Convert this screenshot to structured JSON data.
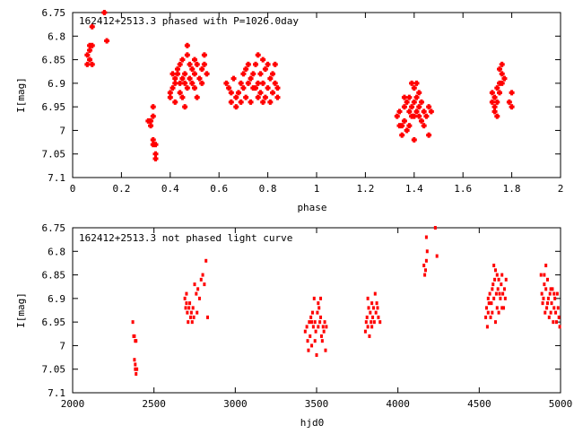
{
  "chart_data": [
    {
      "type": "scatter",
      "title": "162412+2513.3 phased with P=1026.0day",
      "xlabel": "phase",
      "ylabel": "I[mag]",
      "xlim": [
        0,
        2
      ],
      "ylim": [
        6.75,
        7.1
      ],
      "y_inverted": true,
      "grid": false,
      "color": "#ff0000",
      "marker": "cross",
      "x_ticks": [
        "0",
        "0.2",
        "0.4",
        "0.6",
        "0.8",
        "1",
        "1.2",
        "1.4",
        "1.6",
        "1.8",
        "2"
      ],
      "y_ticks": [
        "6.75",
        "6.8",
        "6.85",
        "6.9",
        "6.95",
        "7",
        "7.05",
        "7.1"
      ],
      "x_tick_values": [
        0,
        0.2,
        0.4,
        0.6,
        0.8,
        1.0,
        1.2,
        1.4,
        1.6,
        1.8,
        2.0
      ],
      "y_tick_values": [
        6.75,
        6.8,
        6.85,
        6.9,
        6.95,
        7.0,
        7.05,
        7.1
      ],
      "points": [
        [
          0.06,
          6.84
        ],
        [
          0.07,
          6.85
        ],
        [
          0.06,
          6.86
        ],
        [
          0.07,
          6.83
        ],
        [
          0.08,
          6.82
        ],
        [
          0.07,
          6.82
        ],
        [
          0.08,
          6.86
        ],
        [
          0.08,
          6.78
        ],
        [
          0.13,
          6.75
        ],
        [
          0.14,
          6.81
        ],
        [
          0.31,
          6.98
        ],
        [
          0.32,
          6.98
        ],
        [
          0.33,
          6.97
        ],
        [
          0.33,
          6.95
        ],
        [
          0.32,
          6.99
        ],
        [
          0.33,
          7.02
        ],
        [
          0.34,
          7.03
        ],
        [
          0.34,
          7.05
        ],
        [
          0.34,
          7.06
        ],
        [
          0.33,
          7.03
        ],
        [
          0.4,
          6.92
        ],
        [
          0.41,
          6.91
        ],
        [
          0.4,
          6.93
        ],
        [
          0.42,
          6.9
        ],
        [
          0.42,
          6.89
        ],
        [
          0.43,
          6.87
        ],
        [
          0.43,
          6.88
        ],
        [
          0.44,
          6.86
        ],
        [
          0.44,
          6.92
        ],
        [
          0.45,
          6.93
        ],
        [
          0.45,
          6.85
        ],
        [
          0.46,
          6.88
        ],
        [
          0.46,
          6.9
        ],
        [
          0.47,
          6.82
        ],
        [
          0.47,
          6.84
        ],
        [
          0.48,
          6.86
        ],
        [
          0.48,
          6.89
        ],
        [
          0.49,
          6.87
        ],
        [
          0.49,
          6.9
        ],
        [
          0.5,
          6.91
        ],
        [
          0.5,
          6.88
        ],
        [
          0.51,
          6.86
        ],
        [
          0.52,
          6.89
        ],
        [
          0.53,
          6.9
        ],
        [
          0.53,
          6.87
        ],
        [
          0.54,
          6.84
        ],
        [
          0.54,
          6.86
        ],
        [
          0.55,
          6.88
        ],
        [
          0.44,
          6.9
        ],
        [
          0.46,
          6.95
        ],
        [
          0.47,
          6.91
        ],
        [
          0.42,
          6.94
        ],
        [
          0.41,
          6.88
        ],
        [
          0.51,
          6.93
        ],
        [
          0.45,
          6.89
        ],
        [
          0.5,
          6.85
        ],
        [
          0.63,
          6.9
        ],
        [
          0.64,
          6.91
        ],
        [
          0.65,
          6.92
        ],
        [
          0.65,
          6.94
        ],
        [
          0.66,
          6.89
        ],
        [
          0.67,
          6.93
        ],
        [
          0.67,
          6.95
        ],
        [
          0.68,
          6.92
        ],
        [
          0.69,
          6.9
        ],
        [
          0.69,
          6.94
        ],
        [
          0.7,
          6.91
        ],
        [
          0.7,
          6.88
        ],
        [
          0.71,
          6.87
        ],
        [
          0.71,
          6.93
        ],
        [
          0.72,
          6.86
        ],
        [
          0.72,
          6.9
        ],
        [
          0.73,
          6.89
        ],
        [
          0.73,
          6.94
        ],
        [
          0.74,
          6.88
        ],
        [
          0.75,
          6.86
        ],
        [
          0.75,
          6.91
        ],
        [
          0.76,
          6.84
        ],
        [
          0.76,
          6.9
        ],
        [
          0.77,
          6.88
        ],
        [
          0.77,
          6.92
        ],
        [
          0.78,
          6.85
        ],
        [
          0.78,
          6.9
        ],
        [
          0.79,
          6.87
        ],
        [
          0.79,
          6.93
        ],
        [
          0.8,
          6.86
        ],
        [
          0.8,
          6.91
        ],
        [
          0.81,
          6.89
        ],
        [
          0.81,
          6.94
        ],
        [
          0.82,
          6.88
        ],
        [
          0.82,
          6.92
        ],
        [
          0.83,
          6.9
        ],
        [
          0.83,
          6.86
        ],
        [
          0.84,
          6.93
        ],
        [
          0.84,
          6.91
        ],
        [
          0.78,
          6.94
        ],
        [
          0.76,
          6.93
        ],
        [
          0.74,
          6.91
        ],
        [
          1.33,
          6.97
        ],
        [
          1.34,
          6.96
        ],
        [
          1.34,
          6.99
        ],
        [
          1.35,
          7.01
        ],
        [
          1.36,
          6.95
        ],
        [
          1.36,
          6.98
        ],
        [
          1.37,
          6.94
        ],
        [
          1.37,
          7.0
        ],
        [
          1.38,
          6.93
        ],
        [
          1.38,
          6.96
        ],
        [
          1.39,
          6.9
        ],
        [
          1.39,
          6.95
        ],
        [
          1.4,
          6.97
        ],
        [
          1.4,
          7.02
        ],
        [
          1.41,
          6.93
        ],
        [
          1.41,
          6.96
        ],
        [
          1.42,
          6.92
        ],
        [
          1.42,
          6.95
        ],
        [
          1.43,
          6.94
        ],
        [
          1.43,
          6.98
        ],
        [
          1.44,
          6.99
        ],
        [
          1.44,
          6.96
        ],
        [
          1.45,
          6.97
        ],
        [
          1.46,
          6.95
        ],
        [
          1.46,
          7.01
        ],
        [
          1.47,
          6.96
        ],
        [
          1.41,
          6.9
        ],
        [
          1.38,
          6.99
        ],
        [
          1.4,
          6.94
        ],
        [
          1.35,
          6.99
        ],
        [
          1.42,
          6.97
        ],
        [
          1.4,
          6.91
        ],
        [
          1.39,
          6.97
        ],
        [
          1.36,
          6.93
        ],
        [
          1.72,
          6.94
        ],
        [
          1.72,
          6.92
        ],
        [
          1.73,
          6.96
        ],
        [
          1.73,
          6.93
        ],
        [
          1.74,
          6.91
        ],
        [
          1.74,
          6.97
        ],
        [
          1.75,
          6.92
        ],
        [
          1.75,
          6.9
        ],
        [
          1.76,
          6.88
        ],
        [
          1.76,
          6.9
        ],
        [
          1.77,
          6.89
        ],
        [
          1.75,
          6.87
        ],
        [
          1.76,
          6.86
        ],
        [
          1.79,
          6.94
        ],
        [
          1.8,
          6.95
        ],
        [
          1.8,
          6.92
        ],
        [
          1.73,
          6.95
        ],
        [
          1.74,
          6.94
        ]
      ]
    },
    {
      "type": "scatter",
      "title": "162412+2513.3 not phased light curve",
      "xlabel": "hjd0",
      "ylabel": "I[mag]",
      "xlim": [
        2000,
        5000
      ],
      "ylim": [
        6.75,
        7.1
      ],
      "y_inverted": true,
      "grid": false,
      "color": "#ff0000",
      "marker": "dot",
      "x_ticks": [
        "2000",
        "2500",
        "3000",
        "3500",
        "4000",
        "4500",
        "5000"
      ],
      "y_ticks": [
        "6.75",
        "6.8",
        "6.85",
        "6.9",
        "6.95",
        "7",
        "7.05",
        "7.1"
      ],
      "x_tick_values": [
        2000,
        2500,
        3000,
        3500,
        4000,
        4500,
        5000
      ],
      "y_tick_values": [
        6.75,
        6.8,
        6.85,
        6.9,
        6.95,
        7.0,
        7.05,
        7.1
      ],
      "points": [
        [
          2370,
          6.95
        ],
        [
          2375,
          6.98
        ],
        [
          2380,
          6.98
        ],
        [
          2385,
          6.99
        ],
        [
          2390,
          6.99
        ],
        [
          2380,
          7.03
        ],
        [
          2385,
          7.05
        ],
        [
          2390,
          7.06
        ],
        [
          2395,
          7.05
        ],
        [
          2385,
          7.04
        ],
        [
          2690,
          6.9
        ],
        [
          2695,
          6.92
        ],
        [
          2700,
          6.91
        ],
        [
          2705,
          6.93
        ],
        [
          2710,
          6.95
        ],
        [
          2715,
          6.92
        ],
        [
          2720,
          6.91
        ],
        [
          2725,
          6.94
        ],
        [
          2730,
          6.93
        ],
        [
          2735,
          6.95
        ],
        [
          2740,
          6.92
        ],
        [
          2745,
          6.94
        ],
        [
          2750,
          6.87
        ],
        [
          2760,
          6.89
        ],
        [
          2770,
          6.88
        ],
        [
          2780,
          6.9
        ],
        [
          2790,
          6.86
        ],
        [
          2800,
          6.85
        ],
        [
          2810,
          6.87
        ],
        [
          2820,
          6.82
        ],
        [
          2830,
          6.94
        ],
        [
          2765,
          6.93
        ],
        [
          2700,
          6.89
        ],
        [
          3430,
          6.97
        ],
        [
          3440,
          6.96
        ],
        [
          3445,
          6.99
        ],
        [
          3450,
          7.01
        ],
        [
          3455,
          6.95
        ],
        [
          3460,
          6.98
        ],
        [
          3465,
          6.94
        ],
        [
          3470,
          7.0
        ],
        [
          3475,
          6.93
        ],
        [
          3480,
          6.96
        ],
        [
          3485,
          6.9
        ],
        [
          3490,
          6.95
        ],
        [
          3495,
          6.97
        ],
        [
          3500,
          7.02
        ],
        [
          3505,
          6.93
        ],
        [
          3510,
          6.96
        ],
        [
          3515,
          6.92
        ],
        [
          3520,
          6.95
        ],
        [
          3525,
          6.94
        ],
        [
          3530,
          6.98
        ],
        [
          3535,
          6.99
        ],
        [
          3540,
          6.96
        ],
        [
          3545,
          6.97
        ],
        [
          3550,
          6.95
        ],
        [
          3555,
          7.01
        ],
        [
          3560,
          6.96
        ],
        [
          3490,
          6.99
        ],
        [
          3510,
          6.91
        ],
        [
          3470,
          6.95
        ],
        [
          3525,
          6.9
        ],
        [
          3800,
          6.97
        ],
        [
          3805,
          6.95
        ],
        [
          3810,
          6.94
        ],
        [
          3815,
          6.96
        ],
        [
          3820,
          6.92
        ],
        [
          3825,
          6.98
        ],
        [
          3830,
          6.93
        ],
        [
          3835,
          6.95
        ],
        [
          3840,
          6.91
        ],
        [
          3845,
          6.94
        ],
        [
          3850,
          6.92
        ],
        [
          3855,
          6.95
        ],
        [
          3860,
          6.89
        ],
        [
          3865,
          6.93
        ],
        [
          3870,
          6.91
        ],
        [
          3875,
          6.92
        ],
        [
          3880,
          6.94
        ],
        [
          3890,
          6.95
        ],
        [
          3815,
          6.9
        ],
        [
          3840,
          6.96
        ],
        [
          4160,
          6.83
        ],
        [
          4165,
          6.85
        ],
        [
          4170,
          6.84
        ],
        [
          4175,
          6.82
        ],
        [
          4180,
          6.8
        ],
        [
          4175,
          6.77
        ],
        [
          4230,
          6.75
        ],
        [
          4240,
          6.81
        ],
        [
          4540,
          6.94
        ],
        [
          4545,
          6.92
        ],
        [
          4550,
          6.96
        ],
        [
          4555,
          6.93
        ],
        [
          4560,
          6.91
        ],
        [
          4565,
          6.89
        ],
        [
          4570,
          6.94
        ],
        [
          4575,
          6.91
        ],
        [
          4580,
          6.88
        ],
        [
          4585,
          6.87
        ],
        [
          4590,
          6.9
        ],
        [
          4595,
          6.86
        ],
        [
          4600,
          6.84
        ],
        [
          4605,
          6.89
        ],
        [
          4610,
          6.92
        ],
        [
          4615,
          6.88
        ],
        [
          4620,
          6.86
        ],
        [
          4625,
          6.89
        ],
        [
          4630,
          6.9
        ],
        [
          4635,
          6.87
        ],
        [
          4640,
          6.85
        ],
        [
          4645,
          6.89
        ],
        [
          4650,
          6.92
        ],
        [
          4655,
          6.88
        ],
        [
          4660,
          6.9
        ],
        [
          4665,
          6.86
        ],
        [
          4600,
          6.95
        ],
        [
          4620,
          6.93
        ],
        [
          4580,
          6.93
        ],
        [
          4555,
          6.9
        ],
        [
          4640,
          6.92
        ],
        [
          4590,
          6.83
        ],
        [
          4610,
          6.85
        ],
        [
          4880,
          6.85
        ],
        [
          4885,
          6.89
        ],
        [
          4890,
          6.91
        ],
        [
          4895,
          6.9
        ],
        [
          4900,
          6.87
        ],
        [
          4905,
          6.93
        ],
        [
          4910,
          6.88
        ],
        [
          4915,
          6.92
        ],
        [
          4920,
          6.86
        ],
        [
          4925,
          6.9
        ],
        [
          4930,
          6.94
        ],
        [
          4935,
          6.89
        ],
        [
          4940,
          6.93
        ],
        [
          4945,
          6.91
        ],
        [
          4950,
          6.88
        ],
        [
          4955,
          6.95
        ],
        [
          4960,
          6.92
        ],
        [
          4965,
          6.9
        ],
        [
          4970,
          6.93
        ],
        [
          4975,
          6.95
        ],
        [
          4980,
          6.89
        ],
        [
          4985,
          6.92
        ],
        [
          4990,
          6.94
        ],
        [
          4995,
          6.96
        ],
        [
          4900,
          6.85
        ],
        [
          4920,
          6.91
        ],
        [
          4940,
          6.88
        ],
        [
          4960,
          6.89
        ],
        [
          4910,
          6.83
        ]
      ]
    }
  ]
}
